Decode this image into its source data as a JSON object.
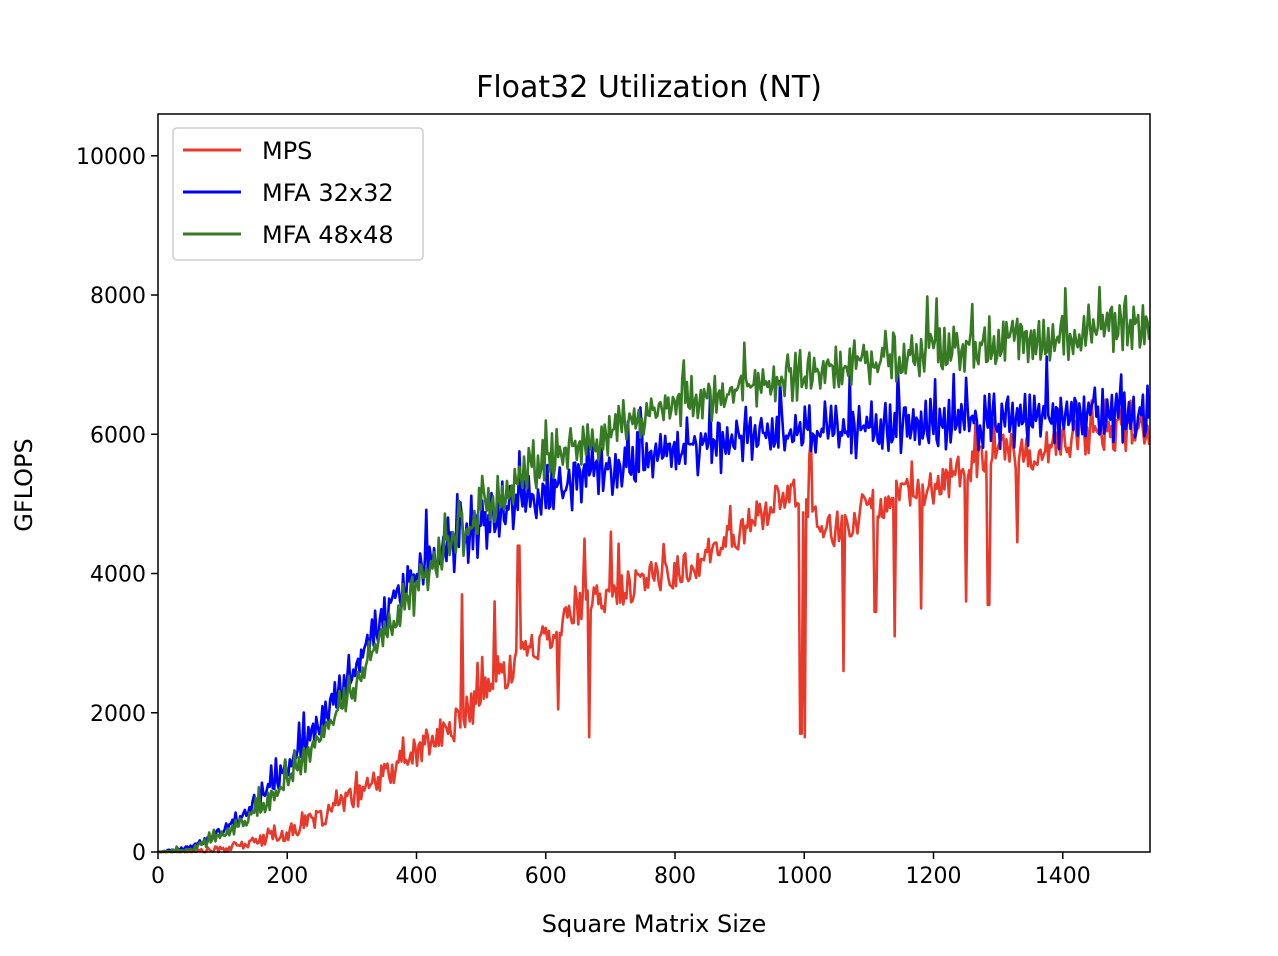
{
  "chart_data": {
    "type": "line",
    "title": "Float32 Utilization (NT)",
    "xlabel": "Square Matrix Size",
    "ylabel": "GFLOPS",
    "xlim": [
      0,
      1535
    ],
    "ylim": [
      0,
      10600
    ],
    "xticks": [
      0,
      200,
      400,
      600,
      800,
      1000,
      1200,
      1400
    ],
    "yticks": [
      0,
      2000,
      4000,
      6000,
      8000,
      10000
    ],
    "grid": false,
    "legend_position": "top-left",
    "series": [
      {
        "name": "MPS",
        "color": "#e8392b",
        "x": [
          0,
          50,
          100,
          150,
          200,
          250,
          300,
          350,
          400,
          450,
          500,
          550,
          600,
          650,
          700,
          750,
          800,
          850,
          900,
          950,
          1000,
          1050,
          1100,
          1150,
          1200,
          1250,
          1300,
          1350,
          1400,
          1450,
          1500,
          1535
        ],
        "y": [
          0,
          5,
          40,
          140,
          270,
          480,
          760,
          1080,
          1450,
          1750,
          2200,
          2700,
          3100,
          3500,
          3700,
          3900,
          4000,
          4250,
          4600,
          5000,
          5100,
          4500,
          5000,
          5100,
          5200,
          5500,
          5800,
          5700,
          5900,
          5950,
          6000,
          6050
        ],
        "spikes": [
          {
            "x": 470,
            "y": 3700
          },
          {
            "x": 520,
            "y": 3600
          },
          {
            "x": 558,
            "y": 4400
          },
          {
            "x": 620,
            "y": 2050
          },
          {
            "x": 660,
            "y": 4500
          },
          {
            "x": 668,
            "y": 1650
          },
          {
            "x": 700,
            "y": 4600
          },
          {
            "x": 995,
            "y": 1700
          },
          {
            "x": 1000,
            "y": 1650
          },
          {
            "x": 1010,
            "y": 5950
          },
          {
            "x": 1060,
            "y": 2600
          },
          {
            "x": 1110,
            "y": 3450
          },
          {
            "x": 1140,
            "y": 3100
          },
          {
            "x": 1180,
            "y": 3500
          },
          {
            "x": 1250,
            "y": 3600
          },
          {
            "x": 1285,
            "y": 3550
          },
          {
            "x": 1330,
            "y": 4450
          }
        ]
      },
      {
        "name": "MFA 32x32",
        "color": "#0000ff",
        "x": [
          0,
          50,
          100,
          150,
          200,
          250,
          300,
          350,
          400,
          450,
          500,
          550,
          600,
          650,
          700,
          750,
          800,
          850,
          900,
          950,
          1000,
          1050,
          1100,
          1150,
          1200,
          1250,
          1300,
          1350,
          1400,
          1450,
          1500,
          1535
        ],
        "y": [
          0,
          60,
          300,
          700,
          1200,
          1850,
          2600,
          3400,
          4000,
          4400,
          4700,
          5000,
          5200,
          5350,
          5500,
          5650,
          5750,
          5850,
          5950,
          6000,
          6050,
          6050,
          6100,
          6100,
          6150,
          6150,
          6200,
          6200,
          6250,
          6250,
          6300,
          6300
        ],
        "noise": 420
      },
      {
        "name": "MFA 48x48",
        "color": "#367a24",
        "x": [
          0,
          50,
          100,
          150,
          200,
          250,
          300,
          350,
          400,
          450,
          500,
          550,
          600,
          650,
          700,
          750,
          800,
          850,
          900,
          950,
          1000,
          1050,
          1100,
          1150,
          1200,
          1250,
          1300,
          1350,
          1400,
          1450,
          1500,
          1535
        ],
        "y": [
          0,
          40,
          230,
          550,
          1000,
          1600,
          2350,
          3150,
          3800,
          4400,
          4900,
          5300,
          5650,
          5850,
          6050,
          6250,
          6400,
          6500,
          6650,
          6750,
          6850,
          6950,
          7050,
          7100,
          7200,
          7250,
          7350,
          7400,
          7450,
          7500,
          7550,
          7600
        ],
        "noise": 380
      }
    ]
  }
}
